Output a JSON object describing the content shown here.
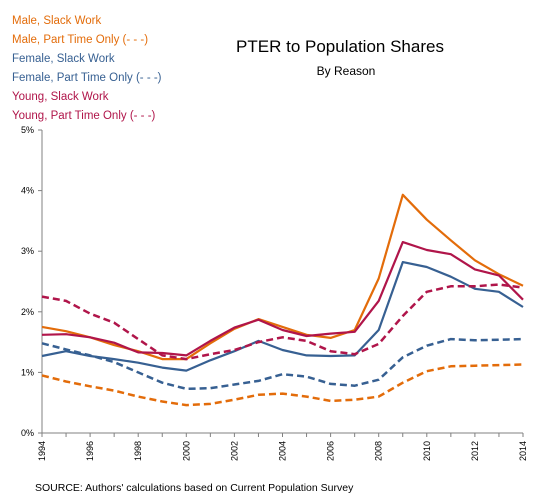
{
  "chart_data": {
    "type": "line",
    "title": "PTER to Population Shares",
    "subtitle": "By Reason",
    "xlabel": "",
    "ylabel": "",
    "source": "SOURCE: Authors' calculations based on Current Population Survey",
    "x": [
      1994,
      1995,
      1996,
      1997,
      1998,
      1999,
      2000,
      2001,
      2002,
      2003,
      2004,
      2005,
      2006,
      2007,
      2008,
      2009,
      2010,
      2011,
      2012,
      2013,
      2014
    ],
    "x_ticks": [
      "1994",
      "1996",
      "1998",
      "2000",
      "2002",
      "2004",
      "2006",
      "2008",
      "2010",
      "2012",
      "2014"
    ],
    "y_ticks": [
      "0%",
      "1%",
      "2%",
      "3%",
      "4%",
      "5%"
    ],
    "ylim": [
      0,
      5
    ],
    "grid": false,
    "legend_placement": "top-left",
    "series": [
      {
        "name": "Male, Slack Work",
        "color": "#e36c0a",
        "dashed": false,
        "values": [
          1.75,
          1.68,
          1.58,
          1.45,
          1.35,
          1.22,
          1.22,
          1.48,
          1.72,
          1.88,
          1.75,
          1.62,
          1.57,
          1.7,
          2.55,
          3.93,
          3.52,
          3.18,
          2.85,
          2.62,
          2.43
        ]
      },
      {
        "name": "Male, Part Time Only (- - -)",
        "color": "#e36c0a",
        "dashed": true,
        "values": [
          0.95,
          0.85,
          0.77,
          0.7,
          0.6,
          0.52,
          0.46,
          0.48,
          0.55,
          0.63,
          0.65,
          0.6,
          0.53,
          0.55,
          0.6,
          0.83,
          1.02,
          1.1,
          1.11,
          1.12,
          1.13
        ]
      },
      {
        "name": "Female, Slack Work",
        "color": "#376092",
        "dashed": false,
        "values": [
          1.27,
          1.35,
          1.27,
          1.22,
          1.16,
          1.08,
          1.03,
          1.2,
          1.35,
          1.52,
          1.37,
          1.28,
          1.27,
          1.28,
          1.7,
          2.82,
          2.74,
          2.58,
          2.38,
          2.33,
          2.08
        ]
      },
      {
        "name": "Female, Part Time Only (- - -)",
        "color": "#376092",
        "dashed": true,
        "values": [
          1.48,
          1.38,
          1.28,
          1.17,
          1.0,
          0.83,
          0.73,
          0.74,
          0.8,
          0.86,
          0.97,
          0.93,
          0.81,
          0.78,
          0.88,
          1.25,
          1.44,
          1.55,
          1.53,
          1.54,
          1.55
        ]
      },
      {
        "name": "Young, Slack Work",
        "color": "#b0154a",
        "dashed": false,
        "values": [
          1.62,
          1.63,
          1.58,
          1.49,
          1.33,
          1.32,
          1.28,
          1.52,
          1.74,
          1.87,
          1.7,
          1.6,
          1.64,
          1.67,
          2.18,
          3.15,
          3.02,
          2.95,
          2.7,
          2.6,
          2.2
        ]
      },
      {
        "name": "Young, Part Time Only (- - -)",
        "color": "#b0154a",
        "dashed": true,
        "values": [
          2.25,
          2.18,
          1.97,
          1.82,
          1.55,
          1.28,
          1.22,
          1.3,
          1.37,
          1.5,
          1.58,
          1.52,
          1.35,
          1.3,
          1.47,
          1.93,
          2.33,
          2.42,
          2.42,
          2.45,
          2.4
        ]
      }
    ]
  }
}
